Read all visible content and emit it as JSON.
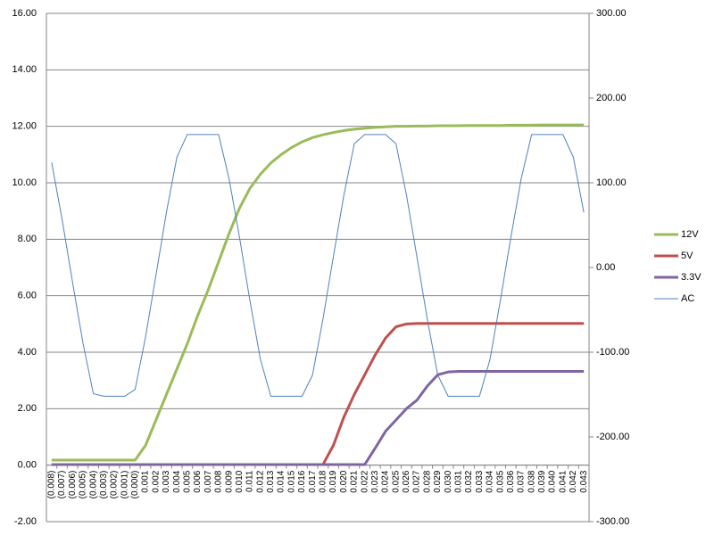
{
  "chart_data": {
    "type": "line",
    "categories": [
      "(0.008)",
      "(0.007)",
      "(0.006)",
      "(0.005)",
      "(0.004)",
      "(0.003)",
      "(0.002)",
      "(0.001)",
      "(0.000)",
      "0.001",
      "0.002",
      "0.003",
      "0.004",
      "0.005",
      "0.006",
      "0.007",
      "0.008",
      "0.009",
      "0.010",
      "0.011",
      "0.012",
      "0.013",
      "0.014",
      "0.015",
      "0.016",
      "0.017",
      "0.018",
      "0.019",
      "0.020",
      "0.021",
      "0.022",
      "0.023",
      "0.024",
      "0.025",
      "0.026",
      "0.027",
      "0.028",
      "0.029",
      "0.030",
      "0.031",
      "0.032",
      "0.033",
      "0.034",
      "0.035",
      "0.036",
      "0.037",
      "0.038",
      "0.039",
      "0.040",
      "0.041",
      "0.042",
      "0.043"
    ],
    "series": [
      {
        "name": "12V",
        "color": "#9bbb59",
        "values": [
          0.18,
          0.18,
          0.18,
          0.18,
          0.18,
          0.18,
          0.18,
          0.18,
          0.18,
          0.7,
          1.6,
          2.5,
          3.4,
          4.3,
          5.3,
          6.2,
          7.2,
          8.2,
          9.1,
          9.8,
          10.3,
          10.7,
          11.0,
          11.25,
          11.45,
          11.6,
          11.7,
          11.78,
          11.85,
          11.9,
          11.93,
          11.96,
          11.98,
          12.0,
          12.0,
          12.01,
          12.01,
          12.02,
          12.02,
          12.02,
          12.03,
          12.03,
          12.03,
          12.03,
          12.04,
          12.04,
          12.04,
          12.05,
          12.05,
          12.05,
          12.05,
          12.05
        ]
      },
      {
        "name": "5V",
        "color": "#c0504d",
        "values": [
          0.02,
          0.02,
          0.02,
          0.02,
          0.02,
          0.02,
          0.02,
          0.02,
          0.02,
          0.02,
          0.02,
          0.02,
          0.02,
          0.02,
          0.02,
          0.02,
          0.02,
          0.02,
          0.02,
          0.02,
          0.02,
          0.02,
          0.02,
          0.02,
          0.02,
          0.02,
          0.02,
          0.7,
          1.7,
          2.5,
          3.2,
          3.9,
          4.5,
          4.9,
          5.0,
          5.02,
          5.02,
          5.02,
          5.02,
          5.02,
          5.02,
          5.02,
          5.02,
          5.02,
          5.02,
          5.02,
          5.02,
          5.02,
          5.02,
          5.02,
          5.02,
          5.02
        ]
      },
      {
        "name": "3.3V",
        "color": "#8064a2",
        "values": [
          0.02,
          0.02,
          0.02,
          0.02,
          0.02,
          0.02,
          0.02,
          0.02,
          0.02,
          0.02,
          0.02,
          0.02,
          0.02,
          0.02,
          0.02,
          0.02,
          0.02,
          0.02,
          0.02,
          0.02,
          0.02,
          0.02,
          0.02,
          0.02,
          0.02,
          0.02,
          0.02,
          0.02,
          0.02,
          0.02,
          0.02,
          0.6,
          1.2,
          1.6,
          2.0,
          2.3,
          2.8,
          3.2,
          3.3,
          3.32,
          3.32,
          3.32,
          3.32,
          3.32,
          3.32,
          3.32,
          3.32,
          3.32,
          3.32,
          3.32,
          3.32,
          3.32
        ]
      },
      {
        "name": "AC",
        "color": "#4f81bd",
        "axis": "y2",
        "values": [
          124,
          57,
          -17,
          -89,
          -149,
          -152,
          -152,
          -152,
          -144,
          -82,
          -9,
          65,
          130,
          157,
          157,
          157,
          157,
          105,
          36,
          -39,
          -108,
          -152,
          -152,
          -152,
          -152,
          -127,
          -61,
          13,
          85,
          146,
          157,
          157,
          157,
          146,
          86,
          13,
          -61,
          -127,
          -152,
          -152,
          -152,
          -152,
          -109,
          -39,
          35,
          105,
          157,
          157,
          157,
          157,
          130,
          65
        ]
      }
    ],
    "ylim": [
      -2,
      16
    ],
    "yticks": [
      {
        "value": -2,
        "label": "-2.00"
      },
      {
        "value": 0,
        "label": "0.00"
      },
      {
        "value": 2,
        "label": "2.00"
      },
      {
        "value": 4,
        "label": "4.00"
      },
      {
        "value": 6,
        "label": "6.00"
      },
      {
        "value": 8,
        "label": "8.00"
      },
      {
        "value": 10,
        "label": "10.00"
      },
      {
        "value": 12,
        "label": "12.00"
      },
      {
        "value": 14,
        "label": "14.00"
      },
      {
        "value": 16,
        "label": "16.00"
      }
    ],
    "y2lim": [
      -300,
      300
    ],
    "y2ticks": [
      {
        "value": -300,
        "label": "-300.00"
      },
      {
        "value": -200,
        "label": "-200.00"
      },
      {
        "value": -100,
        "label": "-100.00"
      },
      {
        "value": 0,
        "label": "0.00"
      },
      {
        "value": 100,
        "label": "100.00"
      },
      {
        "value": 200,
        "label": "200.00"
      },
      {
        "value": 300,
        "label": "300.00"
      }
    ],
    "grid": true,
    "legend": "right"
  }
}
